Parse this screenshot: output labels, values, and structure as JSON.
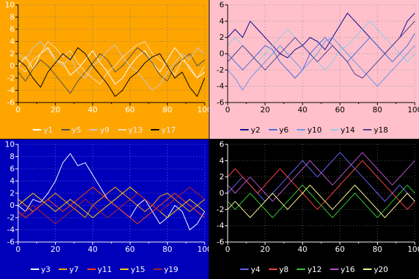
{
  "chart_data": [
    {
      "type": "line",
      "position": "top-left",
      "title": "",
      "xlabel": "",
      "ylabel": "",
      "bg": "#FFA500",
      "text_color": "#FFFFFF",
      "axis_color": "#000000",
      "grid_color": "#7A7A7A",
      "legend_text_color": "#ECECEC",
      "grid": true,
      "legend_position": "bottom",
      "xlim": [
        0,
        100
      ],
      "ylim": [
        -6,
        10
      ],
      "xticks": [
        0,
        20,
        40,
        60,
        80,
        100
      ],
      "yticks": [
        10,
        8,
        6,
        4,
        2,
        0,
        -2,
        -4,
        -6
      ],
      "x": [
        0,
        4,
        8,
        12,
        16,
        20,
        24,
        28,
        32,
        36,
        40,
        44,
        48,
        52,
        56,
        60,
        64,
        68,
        72,
        76,
        80,
        84,
        88,
        92,
        96,
        100
      ],
      "series": [
        {
          "name": "y1",
          "color": "#FFFFFF",
          "values": [
            0,
            1.5,
            -0.5,
            2,
            3,
            1,
            0.5,
            -1.5,
            -0.5,
            1,
            2.5,
            0.5,
            -1,
            -3,
            -2,
            0,
            1.5,
            2.5,
            0.5,
            -1,
            1,
            3,
            1.5,
            -0.5,
            -2,
            -1
          ]
        },
        {
          "name": "y5",
          "color": "#4D4D4D",
          "values": [
            -1,
            -2.5,
            -0.5,
            1,
            0,
            -1.5,
            -3,
            -4.5,
            -2.5,
            -1,
            0.5,
            2,
            1,
            -1,
            0,
            1.5,
            3,
            2,
            0.5,
            -1.5,
            -2.5,
            0,
            1,
            2,
            0,
            1
          ]
        },
        {
          "name": "y9",
          "color": "#C8C8C8",
          "values": [
            2,
            1,
            3,
            4,
            2.5,
            1,
            0,
            1.5,
            -1,
            -2,
            0,
            1,
            2.5,
            3.5,
            1.5,
            0,
            -1,
            -2.5,
            -4,
            -3,
            -1,
            0.5,
            2,
            1,
            3,
            2
          ]
        },
        {
          "name": "y13",
          "color": "#F5DEB3",
          "values": [
            0,
            -1,
            1,
            2,
            4,
            3,
            1.5,
            2.5,
            0.5,
            -1,
            -2,
            -3,
            -1,
            0,
            1.5,
            2.5,
            3.5,
            4,
            2,
            1,
            0,
            -1.5,
            1,
            0,
            -2,
            0
          ]
        },
        {
          "name": "y17",
          "color": "#000000",
          "values": [
            1,
            0,
            -2,
            -3.5,
            -1,
            0.5,
            2,
            1,
            3,
            2,
            0,
            -1.5,
            -3,
            -5,
            -4,
            -2,
            -1,
            0.5,
            1.5,
            2,
            0,
            -2,
            -1,
            -3.5,
            -5,
            -2
          ]
        }
      ]
    },
    {
      "type": "line",
      "position": "top-right",
      "title": "",
      "xlabel": "",
      "ylabel": "",
      "bg": "#FFC0CB",
      "text_color": "#000000",
      "axis_color": "#000000",
      "grid_color": "#999999",
      "legend_text_color": "#000000",
      "grid": true,
      "legend_position": "bottom",
      "xlim": [
        0,
        100
      ],
      "ylim": [
        -6,
        6
      ],
      "xticks": [
        0,
        20,
        40,
        60,
        80,
        100
      ],
      "yticks": [
        6,
        4,
        2,
        0,
        -2,
        -4,
        -6
      ],
      "x": [
        0,
        4,
        8,
        12,
        16,
        20,
        24,
        28,
        32,
        36,
        40,
        44,
        48,
        52,
        56,
        60,
        64,
        68,
        72,
        76,
        80,
        84,
        88,
        92,
        96,
        100
      ],
      "series": [
        {
          "name": "y2",
          "color": "#00008B",
          "values": [
            2,
            3,
            2,
            4,
            3,
            2,
            1,
            0,
            -0.5,
            0.5,
            1,
            2,
            1.5,
            0.5,
            2,
            3.5,
            5,
            4,
            3,
            2,
            1,
            0,
            1,
            2,
            4,
            5
          ]
        },
        {
          "name": "y6",
          "color": "#4169E1",
          "values": [
            0,
            -1,
            -2,
            -1,
            0,
            1,
            0.5,
            -1,
            -2,
            -3,
            -2,
            0,
            1,
            2,
            1,
            0,
            -1,
            0,
            1,
            2,
            1,
            0,
            -1,
            0,
            1,
            2.5
          ]
        },
        {
          "name": "y10",
          "color": "#6495ED",
          "values": [
            -2,
            -3,
            -4.5,
            -3,
            -2,
            -1,
            0,
            1,
            0,
            -1,
            -2,
            -1,
            0,
            1.5,
            2,
            1,
            0,
            -1,
            -2,
            -3,
            -4,
            -3,
            -2,
            -1,
            0,
            1
          ]
        },
        {
          "name": "y14",
          "color": "#87CEEB",
          "values": [
            1,
            2,
            1,
            0,
            -1,
            0,
            1,
            2,
            3,
            2,
            1,
            0,
            -1,
            -2,
            -1,
            0.5,
            1,
            2,
            3,
            4,
            3,
            2,
            1,
            0,
            -1,
            0
          ]
        },
        {
          "name": "y18",
          "color": "#483D8B",
          "values": [
            -1,
            0,
            1,
            0,
            -1,
            -2,
            -1,
            0,
            1,
            2,
            1,
            0,
            -1,
            0,
            1,
            0,
            -1,
            -2.5,
            -3,
            -2,
            -1,
            0,
            1,
            2,
            3,
            4
          ]
        }
      ]
    },
    {
      "type": "line",
      "position": "bottom-left",
      "title": "",
      "xlabel": "",
      "ylabel": "",
      "bg": "#0000BB",
      "text_color": "#FFFFFF",
      "axis_color": "#FFFFFF",
      "grid_color": "#5C5CD6",
      "legend_text_color": "#FFFFFF",
      "grid": true,
      "legend_position": "bottom",
      "xlim": [
        0,
        100
      ],
      "ylim": [
        -6,
        10
      ],
      "xticks": [
        0,
        20,
        40,
        60,
        80,
        100
      ],
      "yticks": [
        10,
        8,
        6,
        4,
        2,
        0,
        -2,
        -4,
        -6
      ],
      "x": [
        0,
        4,
        8,
        12,
        16,
        20,
        24,
        28,
        32,
        36,
        40,
        44,
        48,
        52,
        56,
        60,
        64,
        68,
        72,
        76,
        80,
        84,
        88,
        92,
        96,
        100
      ],
      "series": [
        {
          "name": "y3",
          "color": "#FFFFFF",
          "values": [
            0,
            -1,
            1,
            0.5,
            2,
            4,
            7,
            8.5,
            6.5,
            7,
            5,
            3,
            1,
            0,
            -1,
            -2,
            0,
            1,
            -1,
            -3,
            -2,
            0,
            -1,
            -4,
            -3,
            -1
          ]
        },
        {
          "name": "y7",
          "color": "#FFA500",
          "values": [
            1,
            0,
            -1,
            0,
            1,
            2,
            1,
            0,
            -1,
            -2,
            0,
            1,
            2,
            3,
            2,
            1,
            0,
            -1,
            0,
            1.5,
            2,
            1,
            0,
            -1,
            0,
            1
          ]
        },
        {
          "name": "y11",
          "color": "#FF4500",
          "values": [
            -1,
            -2,
            -1,
            0,
            1,
            0,
            -1,
            0,
            1,
            2,
            3,
            2,
            1,
            0,
            -1,
            -2,
            -3,
            -2,
            -1,
            0,
            1,
            2,
            1,
            0,
            -1,
            -2
          ]
        },
        {
          "name": "y15",
          "color": "#FFD700",
          "values": [
            0,
            1,
            2,
            1,
            0,
            -1,
            0,
            1,
            0,
            -1,
            -2,
            -1,
            0,
            1,
            2,
            3,
            2,
            1,
            0,
            -1,
            -2,
            -1,
            0,
            1,
            0,
            -1
          ]
        },
        {
          "name": "y19",
          "color": "#B22222",
          "values": [
            -2,
            -1,
            0,
            -1,
            -2,
            -3,
            -2,
            -1,
            0,
            1,
            0,
            -1,
            -2,
            -1,
            0,
            1,
            2,
            1,
            0,
            -1,
            0,
            1,
            2,
            3,
            2,
            1
          ]
        }
      ]
    },
    {
      "type": "line",
      "position": "bottom-right",
      "title": "",
      "xlabel": "",
      "ylabel": "",
      "bg": "#000000",
      "text_color": "#FFFFFF",
      "axis_color": "#FFFFFF",
      "grid_color": "#555555",
      "legend_text_color": "#FFFFFF",
      "grid": true,
      "legend_position": "bottom",
      "xlim": [
        0,
        100
      ],
      "ylim": [
        -6,
        6
      ],
      "xticks": [
        0,
        20,
        40,
        60,
        80,
        100
      ],
      "yticks": [
        6,
        4,
        2,
        0,
        -2,
        -4,
        -6
      ],
      "x": [
        0,
        4,
        8,
        12,
        16,
        20,
        24,
        28,
        32,
        36,
        40,
        44,
        48,
        52,
        56,
        60,
        64,
        68,
        72,
        76,
        80,
        84,
        88,
        92,
        96,
        100
      ],
      "series": [
        {
          "name": "y4",
          "color": "#6666FF",
          "values": [
            0,
            1,
            2,
            1,
            0,
            -1,
            0,
            1,
            2,
            3,
            4,
            3,
            2,
            3,
            4,
            5,
            4,
            3,
            2,
            1,
            0,
            -1,
            0,
            1,
            0,
            -1
          ]
        },
        {
          "name": "y8",
          "color": "#FF4444",
          "values": [
            2,
            3,
            2,
            1,
            0,
            1,
            2,
            3,
            2,
            1,
            0,
            -1,
            -2,
            -1,
            0,
            1,
            2,
            3,
            4,
            3,
            2,
            1,
            0,
            -1,
            -2,
            -1
          ]
        },
        {
          "name": "y12",
          "color": "#33CC33",
          "values": [
            -1,
            -2,
            -1,
            0,
            -1,
            -2,
            -3,
            -2,
            -1,
            0,
            1,
            0,
            -1,
            -2,
            -3,
            -2,
            -1,
            0,
            -1,
            -2,
            -3,
            -2,
            -1,
            0,
            1,
            0
          ]
        },
        {
          "name": "y16",
          "color": "#BA55D3",
          "values": [
            1,
            0,
            1,
            2,
            1,
            0,
            -1,
            0,
            1,
            2,
            3,
            4,
            3,
            2,
            1,
            2,
            3,
            4,
            5,
            4,
            3,
            2,
            1,
            2,
            3,
            4
          ]
        },
        {
          "name": "y20",
          "color": "#FFFF99",
          "values": [
            -2,
            -1,
            -2,
            -3,
            -2,
            -1,
            0,
            -1,
            -2,
            -1,
            0,
            1,
            0,
            -1,
            -2,
            -1,
            0,
            1,
            0,
            -1,
            -2,
            -3,
            -2,
            -1,
            0,
            -1
          ]
        }
      ]
    }
  ]
}
